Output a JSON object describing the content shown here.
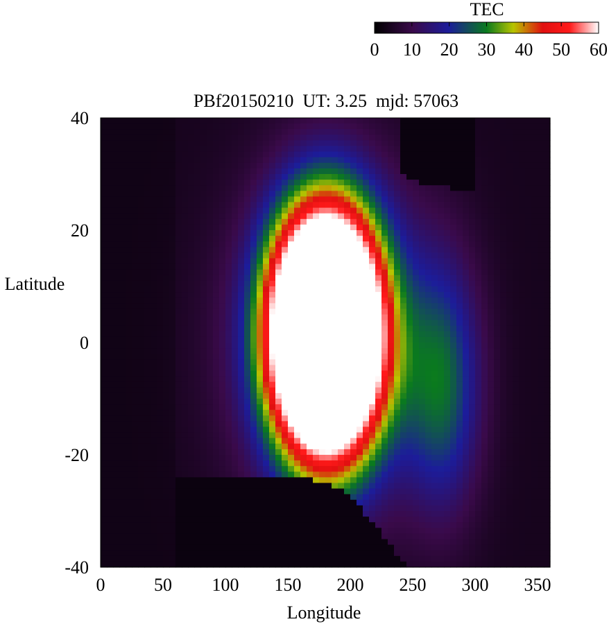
{
  "chart_data": {
    "type": "heatmap",
    "title": "PBf20150210  UT: 3.25  mjd: 57063",
    "xlabel": "Longitude",
    "ylabel": "Latitude",
    "xlim": [
      0,
      360
    ],
    "ylim": [
      -40,
      40
    ],
    "x_ticks": [
      0,
      50,
      100,
      150,
      200,
      250,
      300,
      350
    ],
    "y_ticks": [
      -40,
      -20,
      0,
      20,
      40
    ],
    "colorbar": {
      "label": "TEC",
      "range": [
        0,
        60
      ],
      "ticks": [
        0,
        10,
        20,
        30,
        40,
        50,
        60
      ],
      "palette": [
        "#000000",
        "#3a0a4a",
        "#1c1c9a",
        "#0a7a1e",
        "#b8c400",
        "#e01010",
        "#ff1a1a",
        "#ffffff"
      ]
    },
    "grid": {
      "cols": 72,
      "rows": 80,
      "cell_lon": 5,
      "cell_lat": 1
    },
    "features": {
      "peak_center": [
        180,
        2
      ],
      "peak_tec": 60,
      "secondary_center": [
        275,
        -8
      ],
      "terminator_north_edge_lat": 25,
      "terminator_south_edge_lat": -24
    }
  }
}
